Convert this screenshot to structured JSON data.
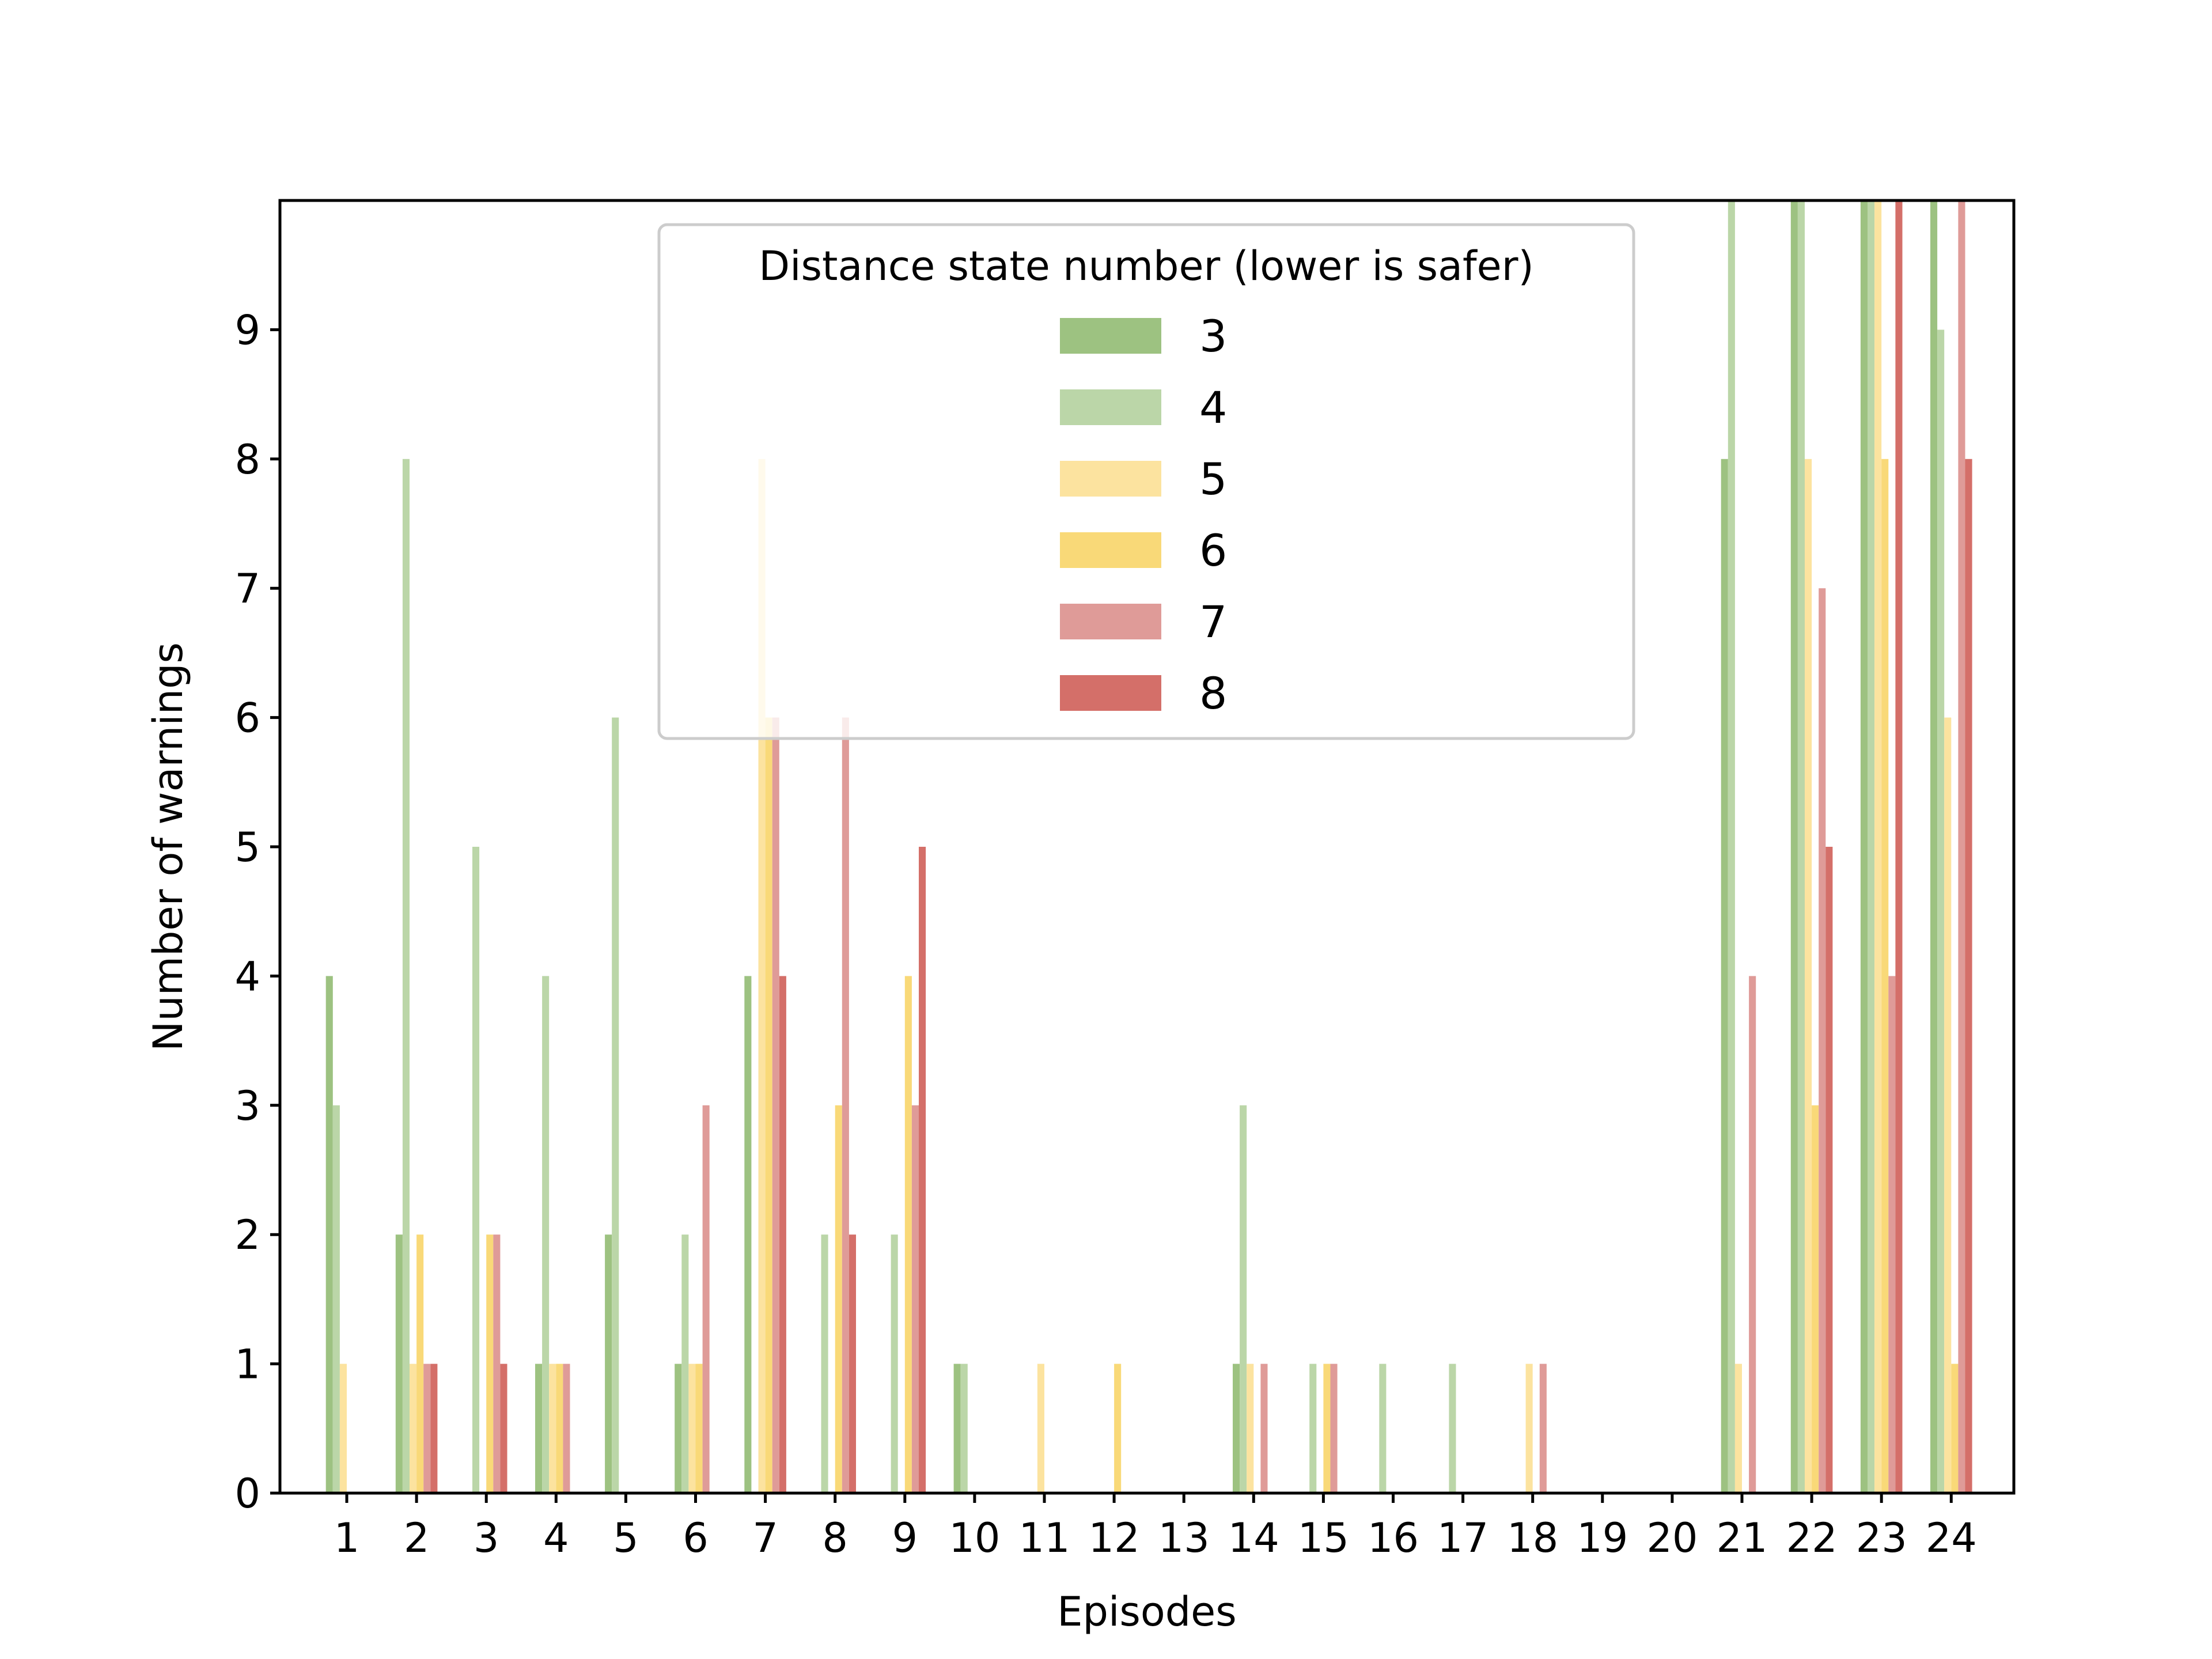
{
  "chart_data": {
    "type": "bar",
    "title": "",
    "xlabel": "Episodes",
    "ylabel": "Number of warnings",
    "categories": [
      "1",
      "2",
      "3",
      "4",
      "5",
      "6",
      "7",
      "8",
      "9",
      "10",
      "11",
      "12",
      "13",
      "14",
      "15",
      "16",
      "17",
      "18",
      "19",
      "20",
      "21",
      "22",
      "23",
      "24"
    ],
    "yticks": [
      0,
      1,
      2,
      3,
      4,
      5,
      6,
      7,
      8,
      9
    ],
    "ylim": [
      0,
      10
    ],
    "grid": false,
    "legend": {
      "title": "Distance state number (lower is safer)",
      "placement": "top-center"
    },
    "series": [
      {
        "name": "3",
        "color": "#9dc281",
        "opacity": 1.0,
        "values": [
          4,
          2,
          0,
          1,
          2,
          1,
          4,
          0,
          0,
          1,
          0,
          0,
          0,
          1,
          0,
          0,
          0,
          0,
          0,
          0,
          8,
          10,
          10,
          10
        ]
      },
      {
        "name": "4",
        "color": "#bbd6a8",
        "opacity": 1.0,
        "values": [
          3,
          8,
          5,
          4,
          6,
          2,
          0,
          2,
          2,
          1,
          0,
          0,
          0,
          3,
          1,
          1,
          1,
          0,
          0,
          0,
          10,
          10,
          10,
          9
        ]
      },
      {
        "name": "5",
        "color": "#fce39f",
        "opacity": 1.0,
        "values": [
          1,
          1,
          0,
          1,
          0,
          1,
          8,
          0,
          0,
          0,
          1,
          0,
          0,
          1,
          0,
          0,
          0,
          1,
          0,
          0,
          1,
          8,
          10,
          6
        ]
      },
      {
        "name": "6",
        "color": "#f9d978",
        "opacity": 1.0,
        "values": [
          0,
          2,
          2,
          1,
          0,
          1,
          6,
          3,
          4,
          0,
          0,
          1,
          0,
          0,
          1,
          0,
          0,
          0,
          0,
          0,
          0,
          3,
          8,
          1
        ]
      },
      {
        "name": "7",
        "color": "#df9b98",
        "opacity": 1.0,
        "values": [
          0,
          1,
          2,
          1,
          0,
          3,
          6,
          6,
          3,
          0,
          0,
          0,
          0,
          1,
          1,
          0,
          0,
          1,
          0,
          0,
          4,
          7,
          4,
          10
        ]
      },
      {
        "name": "8",
        "color": "#d46f69",
        "opacity": 1.0,
        "values": [
          0,
          1,
          1,
          0,
          0,
          0,
          4,
          2,
          5,
          0,
          0,
          0,
          0,
          0,
          0,
          0,
          0,
          0,
          0,
          0,
          0,
          5,
          10,
          8
        ]
      }
    ]
  }
}
